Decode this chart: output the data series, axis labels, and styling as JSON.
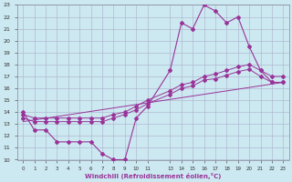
{
  "xlabel": "Windchill (Refroidissement éolien,°C)",
  "ylabel": "",
  "xlim": [
    -0.5,
    23.5
  ],
  "ylim": [
    10,
    23
  ],
  "yticks": [
    10,
    11,
    12,
    13,
    14,
    15,
    16,
    17,
    18,
    19,
    20,
    21,
    22,
    23
  ],
  "xticks": [
    0,
    1,
    2,
    3,
    4,
    5,
    6,
    7,
    8,
    9,
    10,
    11,
    13,
    14,
    15,
    16,
    17,
    18,
    19,
    20,
    21,
    22,
    23
  ],
  "xtick_labels": [
    "0",
    "1",
    "2",
    "3",
    "4",
    "5",
    "6",
    "7",
    "8",
    "9",
    "10",
    "11",
    "13",
    "14",
    "15",
    "16",
    "17",
    "18",
    "19",
    "20",
    "21",
    "22",
    "23"
  ],
  "bg_color": "#cce8f0",
  "grid_color": "#aab0cc",
  "line_color": "#993399",
  "line1_x": [
    0,
    1,
    2,
    3,
    4,
    5,
    6,
    7,
    8,
    9,
    10,
    11,
    13,
    14,
    15,
    16,
    17,
    18,
    19,
    20,
    21,
    22,
    23
  ],
  "line1_y": [
    14.0,
    12.5,
    12.5,
    11.5,
    11.5,
    11.5,
    11.5,
    10.5,
    10.0,
    10.0,
    13.5,
    14.5,
    17.5,
    21.5,
    21.0,
    23.0,
    22.5,
    21.5,
    22.0,
    19.5,
    17.5,
    16.5,
    16.5
  ],
  "line2_x": [
    0,
    1,
    2,
    3,
    4,
    5,
    6,
    7,
    8,
    9,
    10,
    11,
    13,
    14,
    15,
    16,
    17,
    18,
    19,
    20,
    21,
    22,
    23
  ],
  "line2_y": [
    13.8,
    13.5,
    13.5,
    13.5,
    13.5,
    13.5,
    13.5,
    13.5,
    13.8,
    14.0,
    14.5,
    15.0,
    15.8,
    16.3,
    16.5,
    17.0,
    17.2,
    17.5,
    17.8,
    18.0,
    17.5,
    17.0,
    17.0
  ],
  "line3_x": [
    0,
    1,
    2,
    3,
    4,
    5,
    6,
    7,
    8,
    9,
    10,
    11,
    13,
    14,
    15,
    16,
    17,
    18,
    19,
    20,
    21,
    22,
    23
  ],
  "line3_y": [
    13.5,
    13.2,
    13.2,
    13.2,
    13.2,
    13.2,
    13.2,
    13.2,
    13.5,
    13.8,
    14.2,
    14.7,
    15.5,
    16.0,
    16.2,
    16.7,
    16.8,
    17.1,
    17.4,
    17.6,
    17.0,
    16.5,
    16.5
  ],
  "line4_x": [
    0,
    23
  ],
  "line4_y": [
    13.2,
    16.5
  ]
}
